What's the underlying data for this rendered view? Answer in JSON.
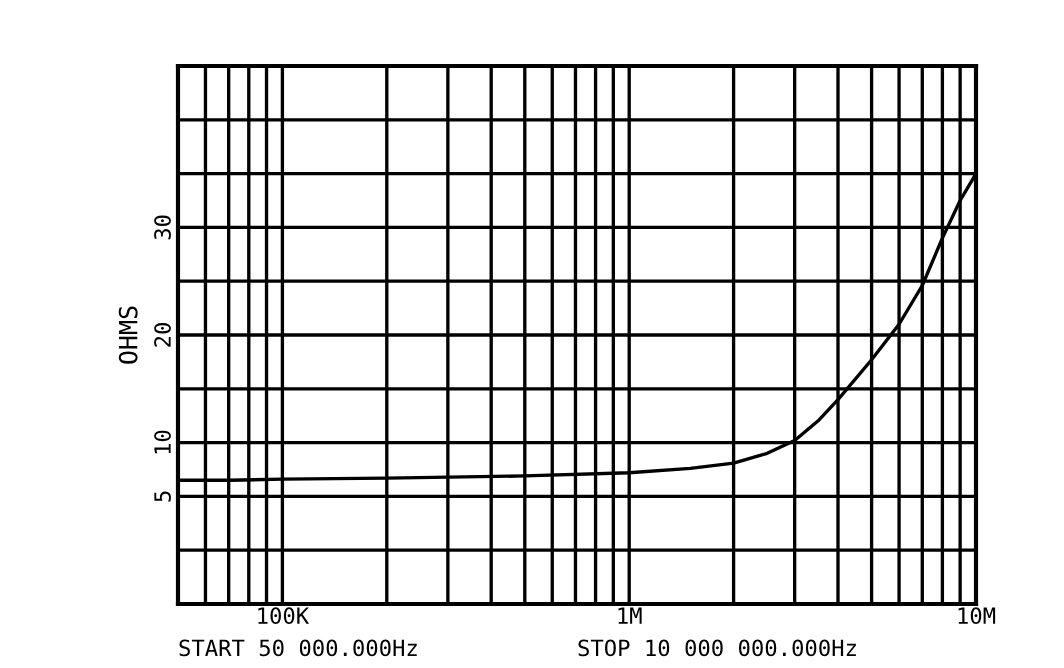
{
  "chart_data": {
    "type": "line",
    "ylabel": "OHMS",
    "x": [
      50000,
      70000,
      100000,
      200000,
      500000,
      1000000,
      1500000,
      2000000,
      2500000,
      3000000,
      3500000,
      4000000,
      5000000,
      6000000,
      7000000,
      8000000,
      9000000,
      10000000
    ],
    "series": [
      {
        "color": "#000000",
        "values": [
          6.5,
          6.5,
          6.6,
          6.7,
          6.9,
          7.2,
          7.6,
          8.1,
          9.0,
          10.2,
          12.0,
          14.0,
          17.7,
          21.0,
          24.6,
          29.0,
          32.5,
          35.0
        ]
      }
    ],
    "log": "x",
    "xlim": [
      50000,
      10000000
    ],
    "xticks": [
      {
        "value": 60000,
        "label": null
      },
      {
        "value": 70000,
        "label": null
      },
      {
        "value": 80000,
        "label": null
      },
      {
        "value": 90000,
        "label": null
      },
      {
        "value": 100000,
        "label": "100K"
      },
      {
        "value": 200000,
        "label": null
      },
      {
        "value": 300000,
        "label": null
      },
      {
        "value": 400000,
        "label": null
      },
      {
        "value": 500000,
        "label": null
      },
      {
        "value": 600000,
        "label": null
      },
      {
        "value": 700000,
        "label": null
      },
      {
        "value": 800000,
        "label": null
      },
      {
        "value": 900000,
        "label": null
      },
      {
        "value": 1000000,
        "label": "1M"
      },
      {
        "value": 2000000,
        "label": null
      },
      {
        "value": 3000000,
        "label": null
      },
      {
        "value": 4000000,
        "label": null
      },
      {
        "value": 5000000,
        "label": null
      },
      {
        "value": 6000000,
        "label": null
      },
      {
        "value": 7000000,
        "label": null
      },
      {
        "value": 8000000,
        "label": null
      },
      {
        "value": 9000000,
        "label": null
      },
      {
        "value": 10000000,
        "label": "10M"
      }
    ],
    "ylim": [
      -5,
      45
    ],
    "yticks": [
      {
        "value": 0,
        "label": null
      },
      5,
      10,
      {
        "value": 15,
        "label": null
      },
      20,
      {
        "value": 25,
        "label": null
      },
      30,
      {
        "value": 35,
        "label": null
      },
      {
        "value": 40,
        "label": null
      }
    ],
    "grid": true,
    "marker": "none",
    "line_style": "solid",
    "annotations": [
      "START 50 000.000Hz",
      "STOP 10 000 000.000Hz"
    ]
  }
}
